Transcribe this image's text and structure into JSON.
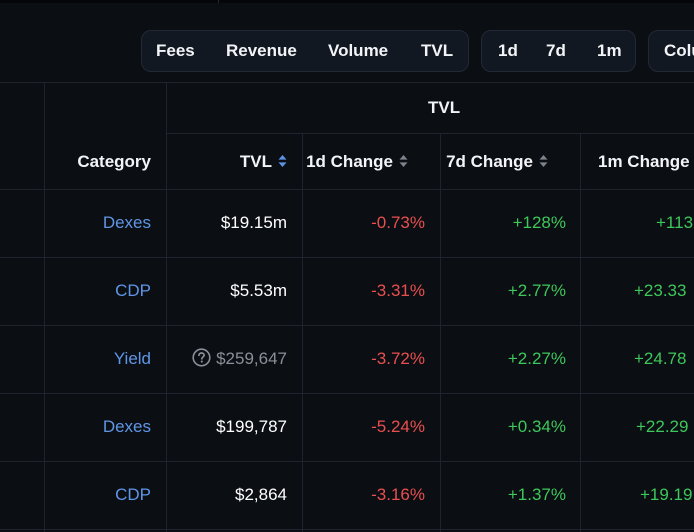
{
  "toolbar": {
    "metric_buttons": [
      "Fees",
      "Revenue",
      "Volume",
      "TVL"
    ],
    "period_buttons": [
      "1d",
      "7d",
      "1m"
    ],
    "columns_button": "Colu"
  },
  "table": {
    "group_header": "TVL",
    "columns": {
      "category": "Category",
      "tvl": "TVL",
      "change_1d": "1d Change",
      "change_7d": "7d Change",
      "change_1m": "1m Change"
    },
    "rows": [
      {
        "category": "Dexes",
        "tvl": "$19.15m",
        "change_1d": "-0.73%",
        "change_7d": "+128%",
        "change_1m": "+113"
      },
      {
        "category": "CDP",
        "tvl": "$5.53m",
        "change_1d": "-3.31%",
        "change_7d": "+2.77%",
        "change_1m": "+23.33"
      },
      {
        "category": "Yield",
        "tvl": "$259,647",
        "change_1d": "-3.72%",
        "change_7d": "+2.27%",
        "change_1m": "+24.78"
      },
      {
        "category": "Dexes",
        "tvl": "$199,787",
        "change_1d": "-5.24%",
        "change_7d": "+0.34%",
        "change_1m": "+22.29"
      },
      {
        "category": "CDP",
        "tvl": "$2,864",
        "change_1d": "-3.16%",
        "change_7d": "+1.37%",
        "change_1m": "+19.19"
      }
    ]
  },
  "colors": {
    "background": "#0b0e13",
    "category_link": "#5f96e6",
    "negative": "#ea4f4f",
    "positive": "#3ec75a",
    "active_sort": "#5c95e8",
    "inactive_sort": "#7d838c"
  },
  "icons": {
    "sort": "sort-arrows-icon",
    "help": "question-circle-icon"
  }
}
